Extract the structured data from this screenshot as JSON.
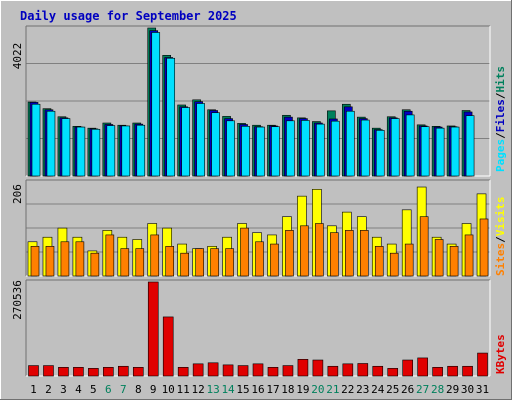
{
  "chart_data": [
    {
      "type": "bar",
      "title": "Daily usage for September 2025",
      "ymax_label": "4022",
      "ylim": [
        0,
        4022
      ],
      "grid": true,
      "categories": [
        "1",
        "2",
        "3",
        "4",
        "5",
        "6",
        "7",
        "8",
        "9",
        "10",
        "11",
        "12",
        "13",
        "14",
        "15",
        "16",
        "17",
        "18",
        "19",
        "20",
        "21",
        "22",
        "23",
        "24",
        "25",
        "26",
        "27",
        "28",
        "29",
        "30",
        "31"
      ],
      "weekend_days": [
        "6",
        "7",
        "13",
        "14",
        "20",
        "21",
        "27",
        "28"
      ],
      "legend": [
        "Pages",
        "/",
        "Files",
        "/",
        "Hits"
      ],
      "series": [
        {
          "name": "Hits",
          "values": [
            2010,
            1830,
            1610,
            1350,
            1300,
            1440,
            1380,
            1440,
            4022,
            3280,
            1930,
            2070,
            1800,
            1620,
            1430,
            1380,
            1380,
            1650,
            1580,
            1480,
            1770,
            1950,
            1600,
            1300,
            1610,
            1800,
            1390,
            1350,
            1360,
            1780,
            0
          ]
        },
        {
          "name": "Files",
          "values": [
            2000,
            1800,
            1580,
            1330,
            1280,
            1400,
            1360,
            1410,
            3950,
            3220,
            1880,
            2020,
            1780,
            1560,
            1400,
            1340,
            1360,
            1600,
            1560,
            1440,
            1550,
            1880,
            1560,
            1260,
            1580,
            1760,
            1360,
            1330,
            1340,
            1740,
            0
          ]
        },
        {
          "name": "Pages",
          "values": [
            1950,
            1760,
            1560,
            1330,
            1270,
            1370,
            1360,
            1380,
            3900,
            3200,
            1860,
            1970,
            1720,
            1500,
            1350,
            1330,
            1340,
            1500,
            1510,
            1410,
            1490,
            1760,
            1520,
            1240,
            1560,
            1660,
            1340,
            1300,
            1330,
            1640,
            0
          ]
        }
      ]
    },
    {
      "type": "bar",
      "ymax_label": "206",
      "ylim": [
        0,
        206
      ],
      "grid": true,
      "legend": [
        "Sites",
        "/",
        "Visits"
      ],
      "series": [
        {
          "name": "Visits",
          "values": [
            75,
            85,
            105,
            85,
            55,
            100,
            85,
            80,
            115,
            105,
            70,
            60,
            65,
            85,
            115,
            95,
            90,
            130,
            175,
            190,
            110,
            140,
            130,
            85,
            70,
            145,
            195,
            85,
            70,
            115,
            180
          ]
        },
        {
          "name": "Sites",
          "values": [
            65,
            65,
            75,
            75,
            50,
            90,
            60,
            60,
            90,
            65,
            50,
            60,
            60,
            60,
            105,
            75,
            70,
            100,
            110,
            115,
            95,
            100,
            100,
            65,
            50,
            70,
            130,
            80,
            65,
            90,
            125
          ]
        }
      ]
    },
    {
      "type": "bar",
      "ymax_label": "270536",
      "ylim": [
        0,
        270536
      ],
      "grid": false,
      "legend": [
        "KBytes"
      ],
      "series": [
        {
          "name": "KBytes",
          "values": [
            30000,
            30000,
            25000,
            25000,
            22000,
            25000,
            28000,
            25000,
            270536,
            170000,
            25000,
            35000,
            38000,
            32000,
            30000,
            35000,
            25000,
            30000,
            48000,
            46000,
            28000,
            35000,
            36000,
            28000,
            22000,
            46000,
            52000,
            25000,
            28000,
            28000,
            66000
          ]
        }
      ]
    }
  ],
  "colors": {
    "background": "#c0c0c0",
    "plot_bg": "#c0c0c0",
    "border_light": "#ffffff",
    "border_dark": "#707070",
    "title": "#0000c0",
    "grid": "#808080",
    "hits": "#00805c",
    "files": "#0000c0",
    "pages": "#00e0ff",
    "visits": "#ffff00",
    "sites": "#ff8000",
    "kbytes": "#e00000",
    "day_normal": "#000000",
    "day_weekend": "#00805c",
    "slash": "#000000"
  }
}
